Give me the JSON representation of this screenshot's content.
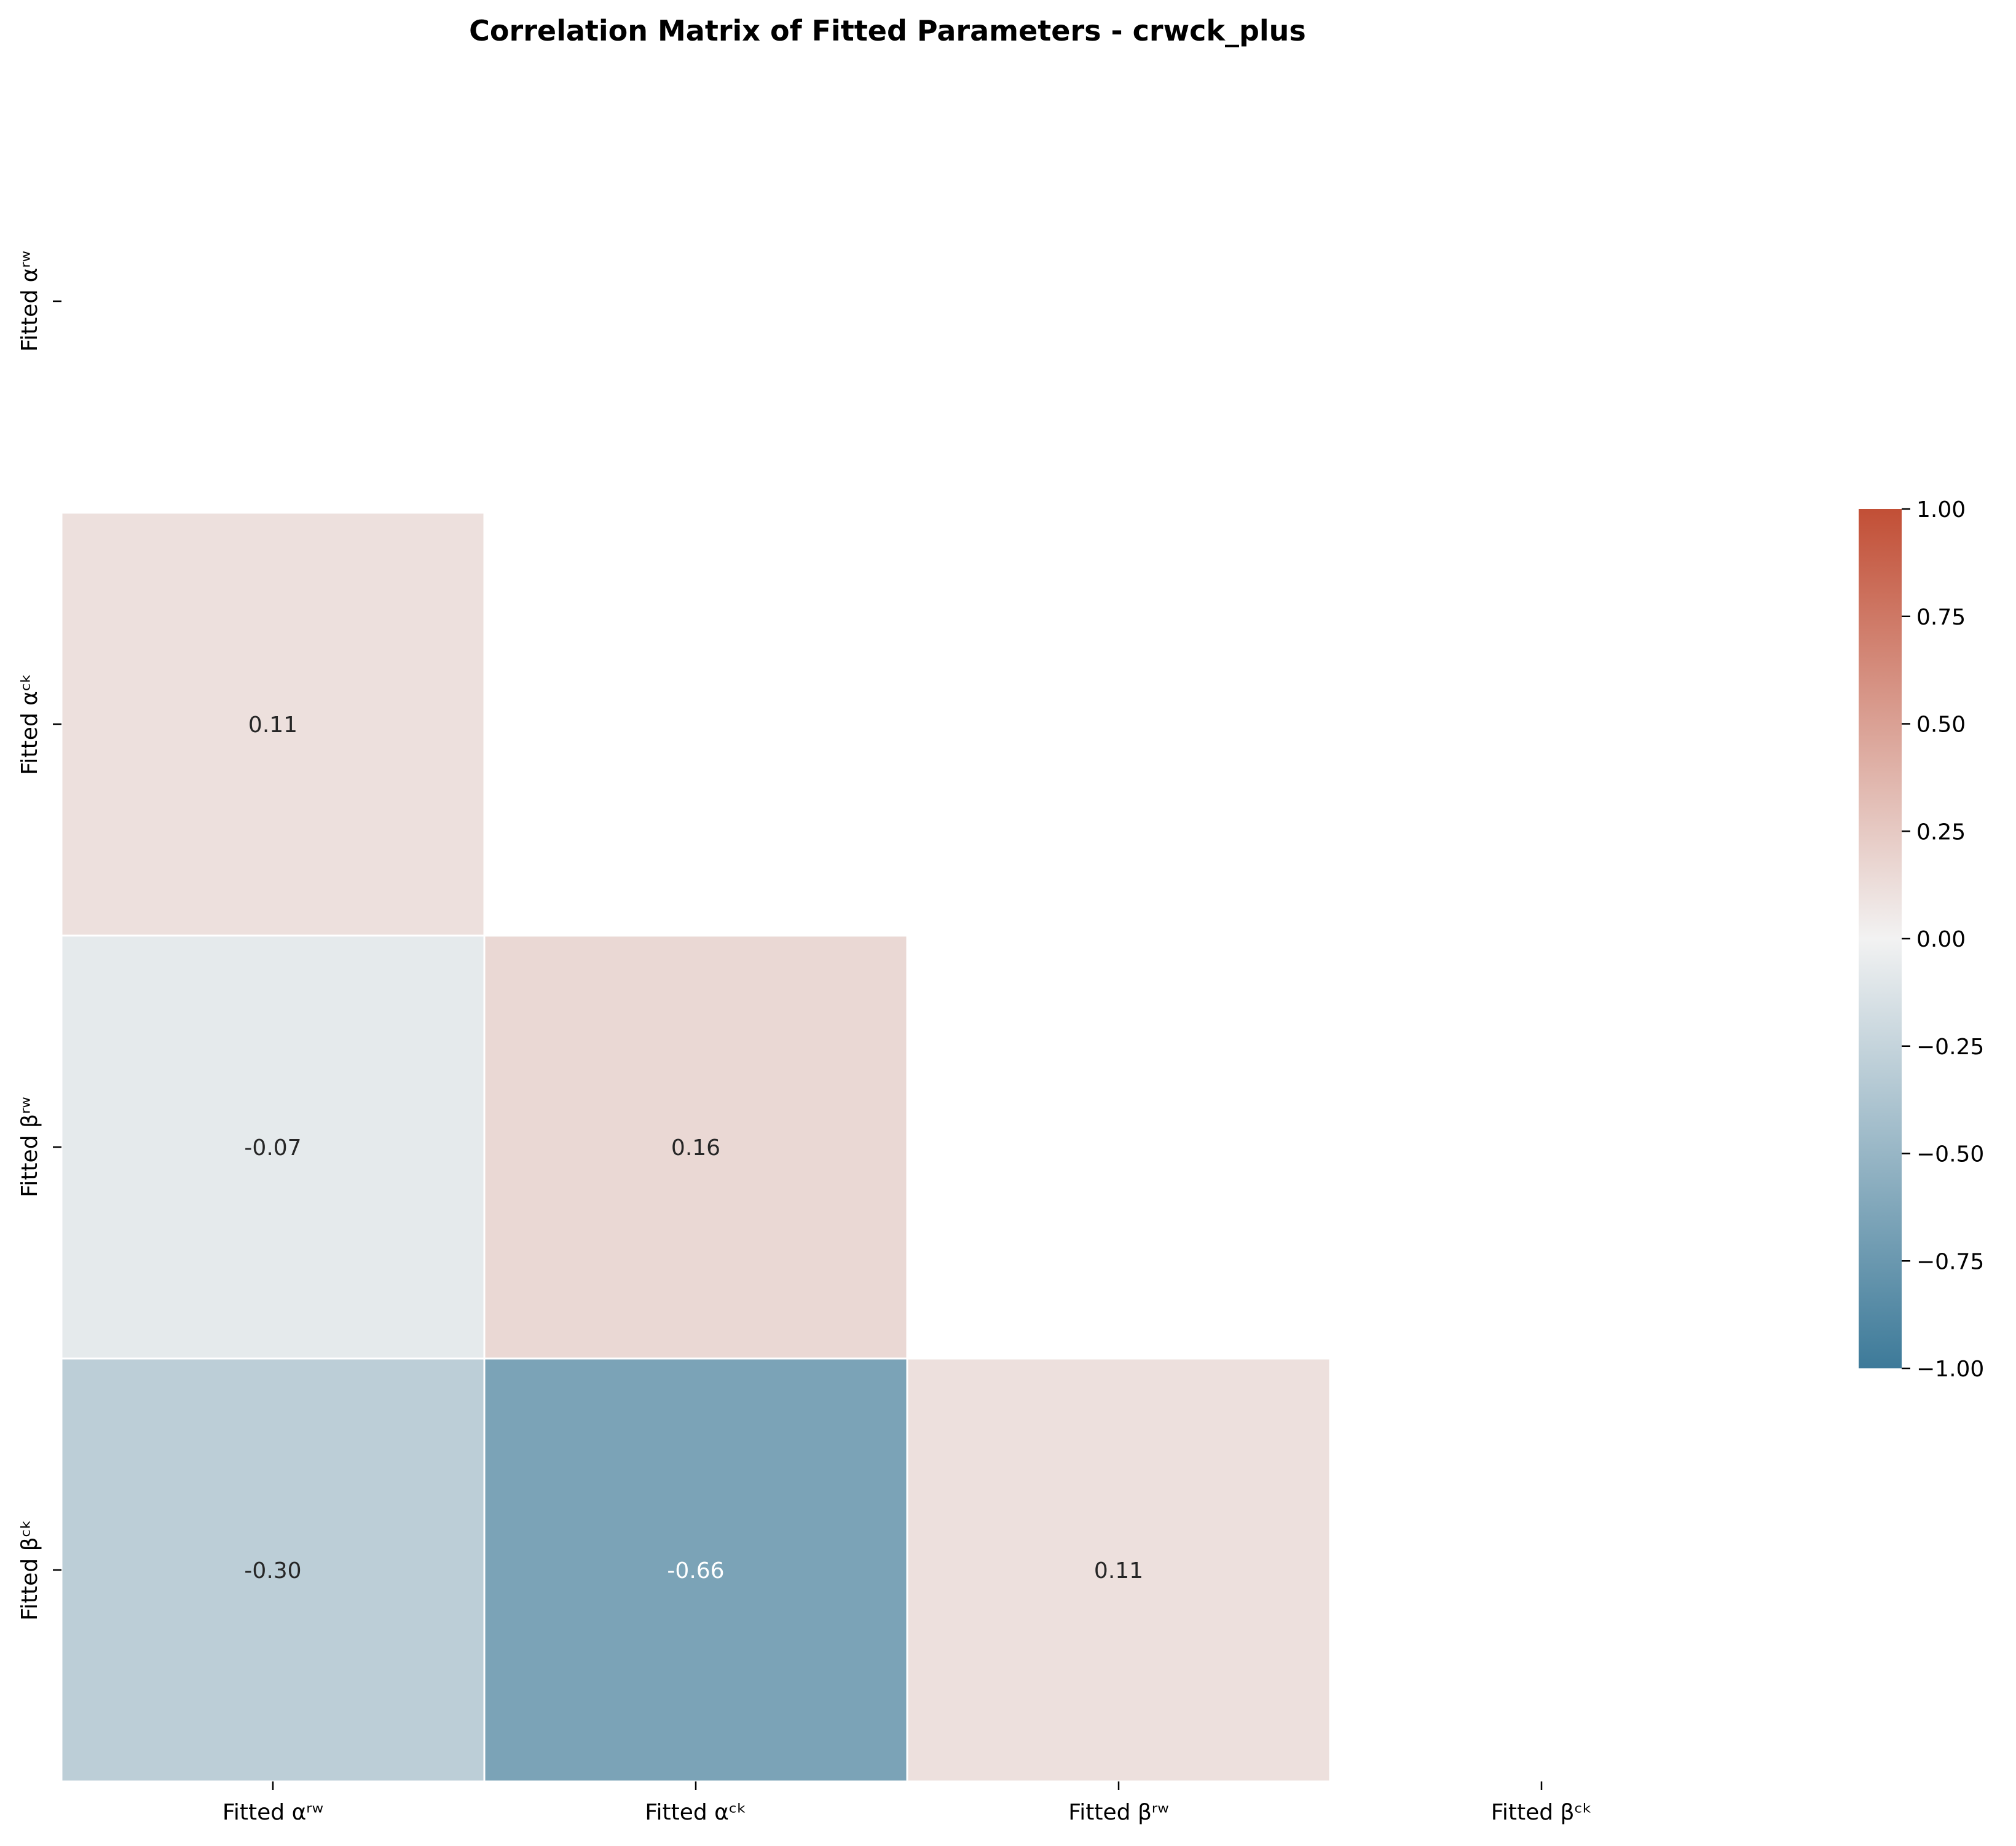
{
  "chart_data": {
    "type": "heatmap",
    "title": "Correlation Matrix of Fitted Parameters - crwck_plus",
    "labels": [
      "Fitted αʳʷ",
      "Fitted αᶜᵏ",
      "Fitted βʳʷ",
      "Fitted βᶜᵏ"
    ],
    "mask": "upper triangle including diagonal",
    "cells": [
      {
        "row": 1,
        "col": 0,
        "value": 0.11,
        "label": "0.11"
      },
      {
        "row": 2,
        "col": 0,
        "value": -0.07,
        "label": "-0.07"
      },
      {
        "row": 2,
        "col": 1,
        "value": 0.16,
        "label": "0.16"
      },
      {
        "row": 3,
        "col": 0,
        "value": -0.3,
        "label": "-0.30"
      },
      {
        "row": 3,
        "col": 1,
        "value": -0.66,
        "label": "-0.66"
      },
      {
        "row": 3,
        "col": 2,
        "value": 0.11,
        "label": "0.11"
      }
    ],
    "vmin": -1.0,
    "vmax": 1.0,
    "colormap": {
      "negative_end": "#3d7a99",
      "center": "#f2f2f2",
      "positive_end": "#c24f36"
    },
    "colorbar_ticks": [
      "1.00",
      "0.75",
      "0.50",
      "0.25",
      "0.00",
      "−0.25",
      "−0.50",
      "−0.75",
      "−1.00"
    ],
    "colorbar_values": [
      1.0,
      0.75,
      0.5,
      0.25,
      0.0,
      -0.25,
      -0.5,
      -0.75,
      -1.0
    ],
    "grid": false,
    "legend": "colorbar at right"
  }
}
